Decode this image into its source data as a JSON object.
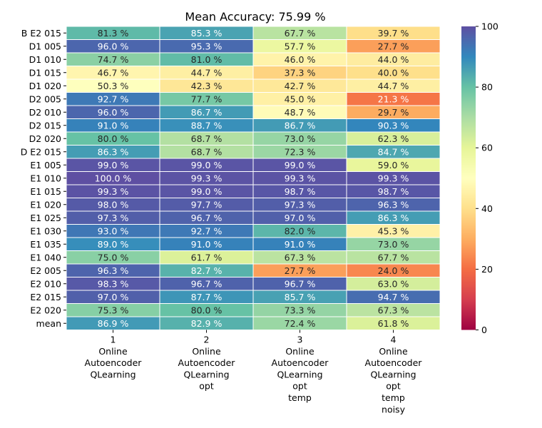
{
  "chart_data": {
    "type": "heatmap",
    "title": "Mean Accuracy: 75.99 %",
    "rows": [
      "B E2 015",
      "D1 005",
      "D1 010",
      "D1 015",
      "D1 020",
      "D2 005",
      "D2 010",
      "D2 015",
      "D2 020",
      "D E2 015",
      "E1 005",
      "E1 010",
      "E1 015",
      "E1 020",
      "E1 025",
      "E1 030",
      "E1 035",
      "E1 040",
      "E2 005",
      "E2 010",
      "E2 015",
      "E2 020",
      "mean"
    ],
    "columns": [
      {
        "index": "1",
        "lines": [
          "Online",
          "Autoencoder",
          "QLearning"
        ]
      },
      {
        "index": "2",
        "lines": [
          "Online",
          "Autoencoder",
          "QLearning",
          "opt"
        ]
      },
      {
        "index": "3",
        "lines": [
          "Online",
          "Autoencoder",
          "QLearning",
          "opt",
          "temp"
        ]
      },
      {
        "index": "4",
        "lines": [
          "Online",
          "Autoencoder",
          "QLearning",
          "opt",
          "temp",
          "noisy"
        ]
      }
    ],
    "values": [
      [
        81.3,
        85.3,
        67.7,
        39.7
      ],
      [
        96.0,
        95.3,
        57.7,
        27.7
      ],
      [
        74.7,
        81.0,
        46.0,
        44.0
      ],
      [
        46.7,
        44.7,
        37.3,
        40.0
      ],
      [
        50.3,
        42.3,
        42.7,
        44.7
      ],
      [
        92.7,
        77.7,
        45.0,
        21.3
      ],
      [
        96.0,
        86.7,
        48.7,
        29.7
      ],
      [
        91.0,
        88.7,
        86.7,
        90.3
      ],
      [
        80.0,
        68.7,
        73.0,
        62.3
      ],
      [
        86.3,
        68.7,
        72.3,
        84.7
      ],
      [
        99.0,
        99.0,
        99.0,
        59.0
      ],
      [
        100.0,
        99.3,
        99.3,
        99.3
      ],
      [
        99.3,
        99.0,
        98.7,
        98.7
      ],
      [
        98.0,
        97.7,
        97.3,
        96.3
      ],
      [
        97.3,
        96.7,
        97.0,
        86.3
      ],
      [
        93.0,
        92.7,
        82.0,
        45.3
      ],
      [
        89.0,
        91.0,
        91.0,
        73.0
      ],
      [
        75.0,
        61.7,
        67.3,
        67.7
      ],
      [
        96.3,
        82.7,
        27.7,
        24.0
      ],
      [
        98.3,
        96.7,
        96.7,
        63.0
      ],
      [
        97.0,
        87.7,
        85.7,
        94.7
      ],
      [
        75.3,
        80.0,
        73.3,
        67.3
      ],
      [
        86.9,
        82.9,
        72.4,
        61.8
      ]
    ],
    "value_suffix": " %",
    "colormap": "Spectral",
    "colorbar": {
      "min": 0,
      "max": 100,
      "ticks": [
        0,
        20,
        40,
        60,
        80,
        100
      ]
    },
    "grid": false,
    "legend": "colorbar-right"
  }
}
